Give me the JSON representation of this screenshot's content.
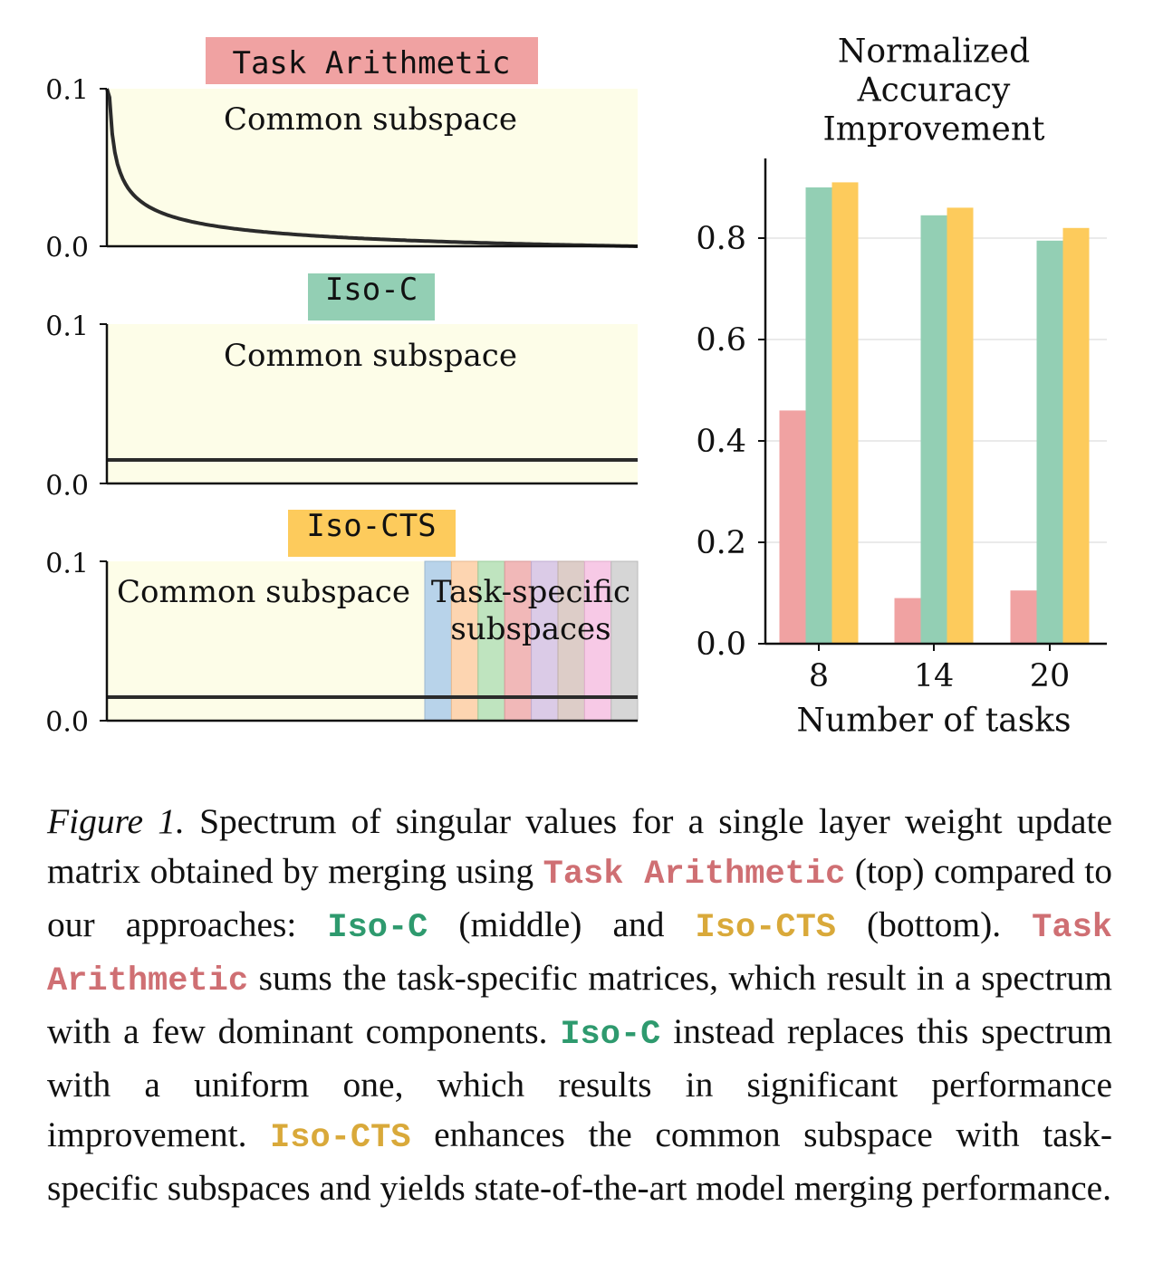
{
  "chart_data": [
    {
      "type": "line",
      "title": "Task Arithmetic",
      "title_color": "#f0a2a2",
      "region_label": "Common subspace",
      "region_color": "#fdfde8",
      "yticks": [
        "0.0",
        "0.1"
      ],
      "ylim": [
        0,
        0.1
      ],
      "curve": "decaying",
      "values": [
        0.1,
        0.07,
        0.05,
        0.04,
        0.032,
        0.026,
        0.021,
        0.017,
        0.014,
        0.011,
        0.008,
        0.006,
        0.004,
        0.002,
        0.0
      ]
    },
    {
      "type": "line",
      "title": "Iso-C",
      "title_color": "#93cfb4",
      "region_label": "Common subspace",
      "region_color": "#fdfde8",
      "yticks": [
        "0.0",
        "0.1"
      ],
      "ylim": [
        0,
        0.1
      ],
      "curve": "flat",
      "values": [
        0.015,
        0.015
      ]
    },
    {
      "type": "line",
      "title": "Iso-CTS",
      "title_color": "#fdcb5c",
      "region_label": "Common subspace",
      "region_color": "#fdfde8",
      "task_region_label": [
        "Task-specific",
        "subspaces"
      ],
      "task_band_colors": [
        "#b8d3ea",
        "#fdd5b1",
        "#bfe4bf",
        "#f1b8b8",
        "#dbcbe7",
        "#ddcdc8",
        "#f7c9e6",
        "#d6d6d6"
      ],
      "yticks": [
        "0.0",
        "0.1"
      ],
      "ylim": [
        0,
        0.1
      ],
      "curve": "flat",
      "values": [
        0.015,
        0.015
      ]
    },
    {
      "type": "bar",
      "title": [
        "Normalized",
        "Accuracy",
        "Improvement"
      ],
      "xlabel": "Number of tasks",
      "categories": [
        "8",
        "14",
        "20"
      ],
      "ylim": [
        0,
        0.96
      ],
      "yticks": [
        "0.0",
        "0.2",
        "0.4",
        "0.6",
        "0.8"
      ],
      "grid": true,
      "series": [
        {
          "name": "Task Arithmetic",
          "color": "#f0a2a2",
          "values": [
            0.46,
            0.09,
            0.105
          ]
        },
        {
          "name": "Iso-C",
          "color": "#93cfb4",
          "values": [
            0.9,
            0.845,
            0.795
          ]
        },
        {
          "name": "Iso-CTS",
          "color": "#fdcb5c",
          "values": [
            0.91,
            0.86,
            0.82
          ]
        }
      ]
    }
  ],
  "caption": {
    "label": "Figure 1.",
    "t1": " Spectrum of singular values for a single layer weight update matrix obtained by merging using ",
    "m1": "Task Arithmetic",
    "t2": " (top) compared to our approaches: ",
    "m2": "Iso-C",
    "t3": " (middle) and ",
    "m3": "Iso-CTS",
    "t4": " (bottom). ",
    "m4": "Task Arithmetic",
    "t5": " sums the task-specific matrices, which result in a spectrum with a few dominant components. ",
    "m5": "Iso-C",
    "t6": " instead replaces this spectrum with a uniform one, which results in significant performance improvement. ",
    "m6": "Iso-CTS",
    "t7": " enhances the common subspace with task-specific subspaces and yields state-of-the-art model merging performance."
  }
}
